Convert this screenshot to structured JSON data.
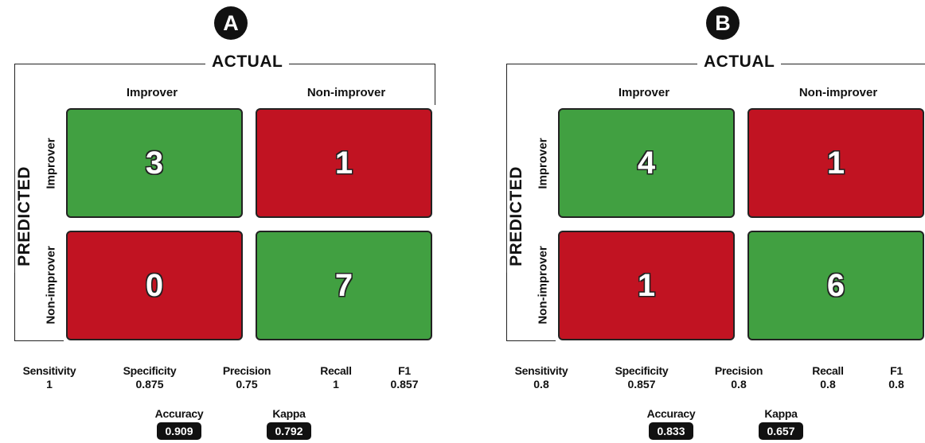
{
  "labels": {
    "actual": "ACTUAL",
    "predicted": "PREDICTED",
    "improver": "Improver",
    "non_improver": "Non-improver"
  },
  "metric_names": {
    "sensitivity": "Sensitivity",
    "specificity": "Specificity",
    "precision": "Precision",
    "recall": "Recall",
    "f1": "F1",
    "accuracy": "Accuracy",
    "kappa": "Kappa"
  },
  "colors": {
    "correct": "#41a041",
    "incorrect": "#c11322"
  },
  "panels": [
    {
      "badge": "A",
      "matrix": {
        "tp": "3",
        "fp": "1",
        "fn": "0",
        "tn": "7"
      },
      "metrics": {
        "sensitivity": "1",
        "specificity": "0.875",
        "precision": "0.75",
        "recall": "1",
        "f1": "0.857",
        "accuracy": "0.909",
        "kappa": "0.792"
      }
    },
    {
      "badge": "B",
      "matrix": {
        "tp": "4",
        "fp": "1",
        "fn": "1",
        "tn": "6"
      },
      "metrics": {
        "sensitivity": "0.8",
        "specificity": "0.857",
        "precision": "0.8",
        "recall": "0.8",
        "f1": "0.8",
        "accuracy": "0.833",
        "kappa": "0.657"
      }
    }
  ]
}
